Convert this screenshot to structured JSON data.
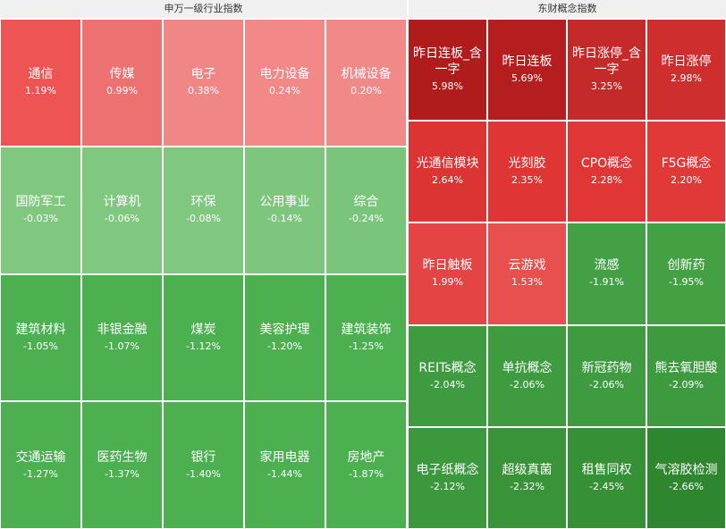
{
  "left": {
    "title": "申万一级行业指数",
    "columns": 5,
    "tiles": [
      {
        "name": "通信",
        "change": "1.19%",
        "color": "#ef5454"
      },
      {
        "name": "传媒",
        "change": "0.99%",
        "color": "#ee7171"
      },
      {
        "name": "电子",
        "change": "0.38%",
        "color": "#f18686"
      },
      {
        "name": "电力设备",
        "change": "0.24%",
        "color": "#f28888"
      },
      {
        "name": "机械设备",
        "change": "0.20%",
        "color": "#f28989"
      },
      {
        "name": "国防军工",
        "change": "-0.03%",
        "color": "#80c780"
      },
      {
        "name": "计算机",
        "change": "-0.06%",
        "color": "#80c780"
      },
      {
        "name": "环保",
        "change": "-0.08%",
        "color": "#80c780"
      },
      {
        "name": "公用事业",
        "change": "-0.14%",
        "color": "#7ec67e"
      },
      {
        "name": "综合",
        "change": "-0.24%",
        "color": "#7bc47b"
      },
      {
        "name": "建筑材料",
        "change": "-1.05%",
        "color": "#4caf50"
      },
      {
        "name": "非银金融",
        "change": "-1.07%",
        "color": "#4caf50"
      },
      {
        "name": "煤炭",
        "change": "-1.12%",
        "color": "#4caf50"
      },
      {
        "name": "美容护理",
        "change": "-1.20%",
        "color": "#4caf50"
      },
      {
        "name": "建筑装饰",
        "change": "-1.25%",
        "color": "#4caf50"
      },
      {
        "name": "交通运输",
        "change": "-1.27%",
        "color": "#4caf50"
      },
      {
        "name": "医药生物",
        "change": "-1.37%",
        "color": "#4caf50"
      },
      {
        "name": "银行",
        "change": "-1.40%",
        "color": "#4caf50"
      },
      {
        "name": "家用电器",
        "change": "-1.44%",
        "color": "#4caf50"
      },
      {
        "name": "房地产",
        "change": "-1.87%",
        "color": "#4caf50"
      }
    ]
  },
  "right": {
    "title": "东财概念指数",
    "columns": 4,
    "tiles": [
      {
        "name": "昨日连板_含一字",
        "change": "5.98%",
        "color": "#b01c1c"
      },
      {
        "name": "昨日连板",
        "change": "5.69%",
        "color": "#b51e1e"
      },
      {
        "name": "昨日涨停_含一字",
        "change": "3.25%",
        "color": "#c52a2a"
      },
      {
        "name": "昨日涨停",
        "change": "2.98%",
        "color": "#cf2e2e"
      },
      {
        "name": "光通信模块",
        "change": "2.64%",
        "color": "#dc3333"
      },
      {
        "name": "光刻胶",
        "change": "2.35%",
        "color": "#e03535"
      },
      {
        "name": "CPO概念",
        "change": "2.28%",
        "color": "#e03636"
      },
      {
        "name": "F5G概念",
        "change": "2.20%",
        "color": "#e13838"
      },
      {
        "name": "昨日触板",
        "change": "1.99%",
        "color": "#e54444"
      },
      {
        "name": "云游戏",
        "change": "1.53%",
        "color": "#e84f4f"
      },
      {
        "name": "流感",
        "change": "-1.91%",
        "color": "#44a044"
      },
      {
        "name": "创新药",
        "change": "-1.95%",
        "color": "#43a043"
      },
      {
        "name": "REITs概念",
        "change": "-2.04%",
        "color": "#3f9b3f"
      },
      {
        "name": "单抗概念",
        "change": "-2.06%",
        "color": "#3f9b3f"
      },
      {
        "name": "新冠药物",
        "change": "-2.06%",
        "color": "#3f9b3f"
      },
      {
        "name": "熊去氧胆酸",
        "change": "-2.09%",
        "color": "#3e9a3e"
      },
      {
        "name": "电子纸概念",
        "change": "-2.12%",
        "color": "#3c983c"
      },
      {
        "name": "超级真菌",
        "change": "-2.32%",
        "color": "#399339"
      },
      {
        "name": "租售同权",
        "change": "-2.45%",
        "color": "#369036"
      },
      {
        "name": "气溶胶检测",
        "change": "-2.66%",
        "color": "#2e862e"
      }
    ]
  }
}
